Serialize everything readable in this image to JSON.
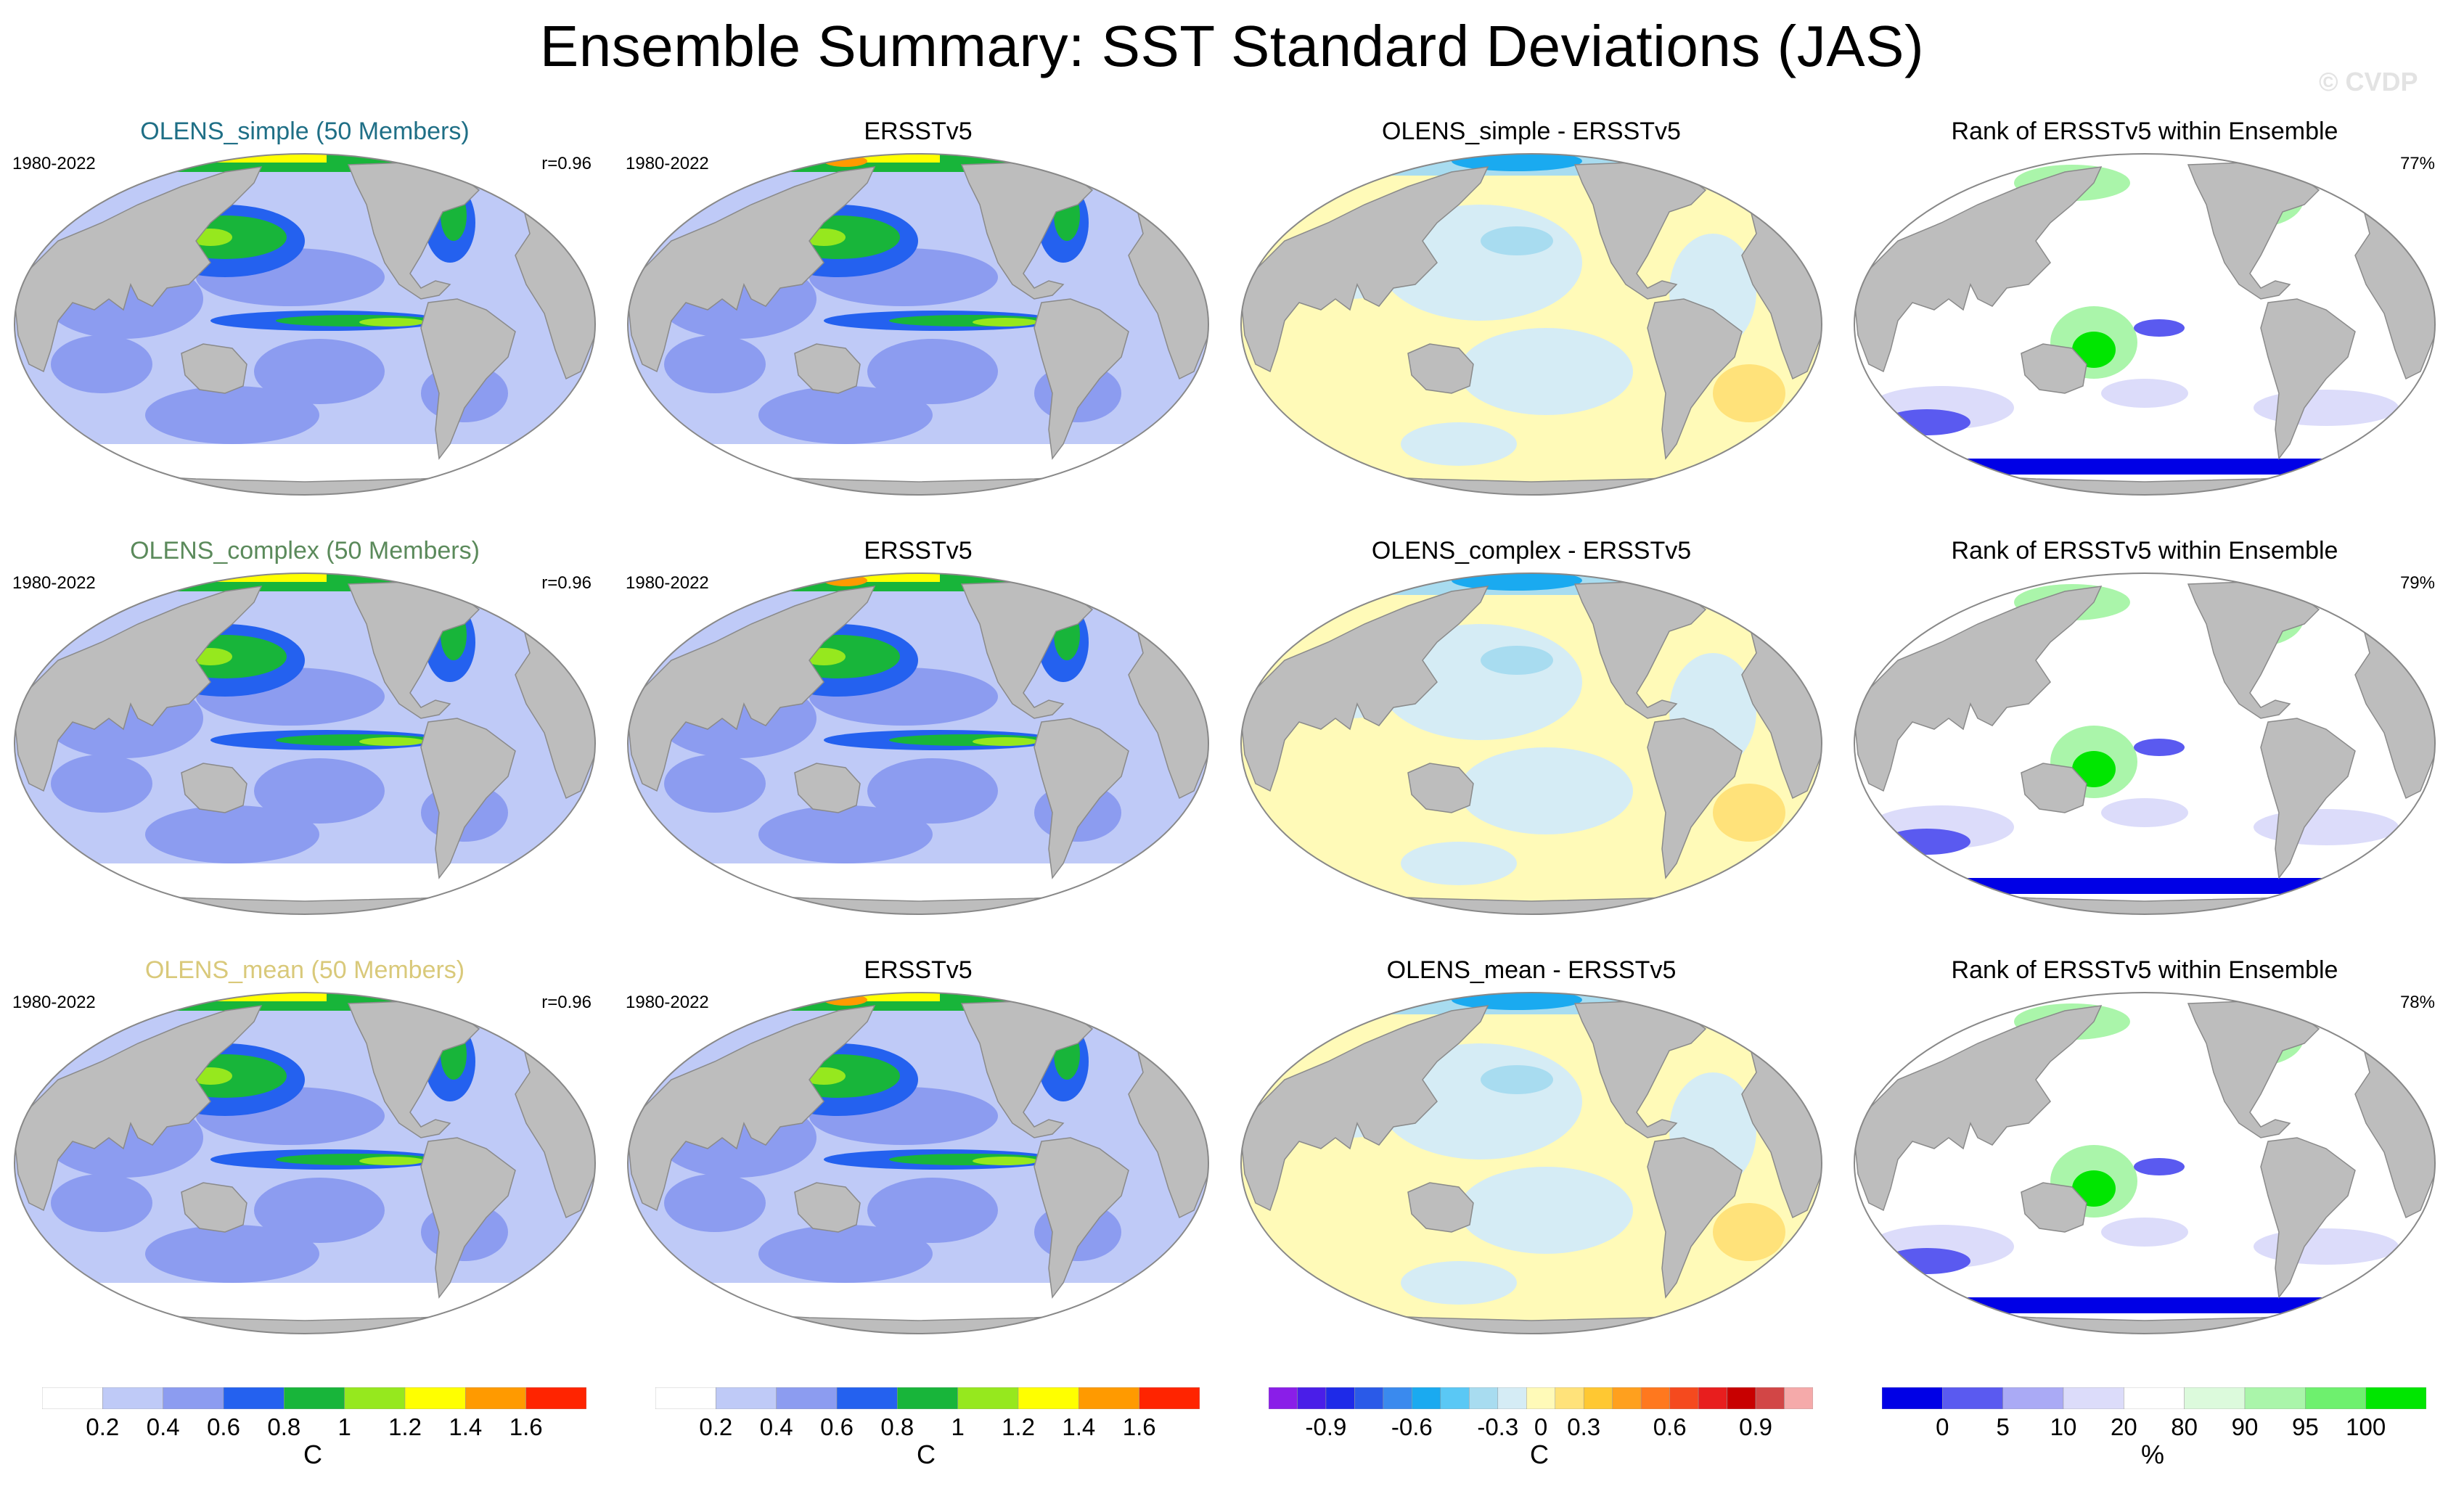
{
  "title": "Ensemble Summary: SST Standard Deviations (JAS)",
  "watermark": "© CVDP",
  "rows": [
    {
      "model_title": "OLENS_simple (50 Members)",
      "model_title_color": "#1f6f86",
      "period": "1980-2022",
      "r_value": "r=0.96",
      "obs_title": "ERSSTv5",
      "obs_period": "1980-2022",
      "diff_title": "OLENS_simple - ERSSTv5",
      "rank_title": "Rank of ERSSTv5 within Ensemble",
      "rank_percent": "77%"
    },
    {
      "model_title": "OLENS_complex (50 Members)",
      "model_title_color": "#5b8a5b",
      "period": "1980-2022",
      "r_value": "r=0.96",
      "obs_title": "ERSSTv5",
      "obs_period": "1980-2022",
      "diff_title": "OLENS_complex - ERSSTv5",
      "rank_title": "Rank of ERSSTv5 within Ensemble",
      "rank_percent": "79%"
    },
    {
      "model_title": "OLENS_mean (50 Members)",
      "model_title_color": "#d9c97a",
      "period": "1980-2022",
      "r_value": "r=0.96",
      "obs_title": "ERSSTv5",
      "obs_period": "1980-2022",
      "diff_title": "OLENS_mean - ERSSTv5",
      "rank_title": "Rank of ERSSTv5 within Ensemble",
      "rank_percent": "78%"
    }
  ],
  "colorbars": {
    "sst": {
      "colors": [
        "#ffffff",
        "#bfcaf7",
        "#8c9cf0",
        "#2461ef",
        "#18b53a",
        "#96e81e",
        "#ffff00",
        "#ff9a00",
        "#ff2400"
      ],
      "labels": [
        "0.2",
        "0.4",
        "0.6",
        "0.8",
        "1",
        "1.2",
        "1.4",
        "1.6"
      ],
      "unit": "C"
    },
    "diff": {
      "colors": [
        "#8a1ee8",
        "#4a1ee8",
        "#1e2ae8",
        "#2a5ae8",
        "#3a8aee",
        "#1aaaf0",
        "#5ac8f5",
        "#a8dcf0",
        "#d5ecf5",
        "#fffab8",
        "#ffe27a",
        "#ffc832",
        "#ffa01e",
        "#ff781e",
        "#f54a1e",
        "#e81e1e",
        "#c80000",
        "#d24646",
        "#f5aaaa"
      ],
      "labels": [
        "-0.9",
        "-0.6",
        "-0.3",
        "0",
        "0.3",
        "0.6",
        "0.9"
      ],
      "unit": "C"
    },
    "rank": {
      "colors": [
        "#0000e6",
        "#5a5af0",
        "#aaaaf5",
        "#dcdcfa",
        "#ffffff",
        "#dcfadc",
        "#aaf5aa",
        "#6ef06e",
        "#00e600"
      ],
      "labels": [
        "0",
        "5",
        "10",
        "20",
        "80",
        "90",
        "95",
        "100"
      ],
      "unit": "%"
    }
  }
}
